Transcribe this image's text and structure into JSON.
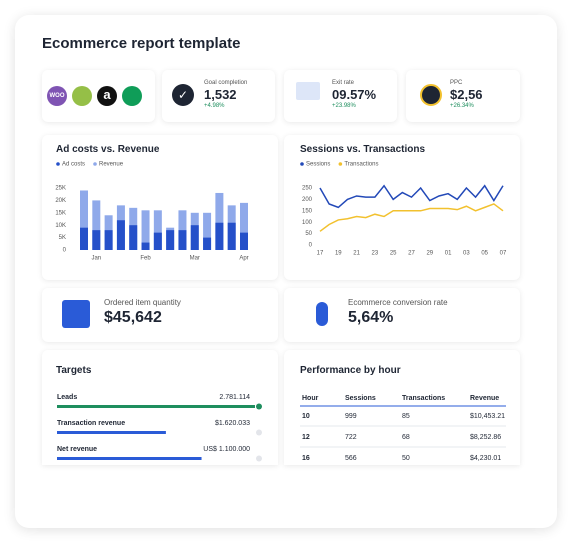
{
  "header": {
    "title": "Ecommerce report template"
  },
  "logos": [
    "WOO",
    "a"
  ],
  "kpis": [
    {
      "label": "Goal completion",
      "value": "1,532",
      "change": "+4.98%"
    },
    {
      "label": "Exit rate",
      "value": "09.57%",
      "change": "+23.98%"
    },
    {
      "label": "PPC",
      "value": "$2,56",
      "change": "+26.34%"
    }
  ],
  "charts": [
    {
      "type": "bar",
      "title": "Ad costs vs. Revenue",
      "categories": [
        null,
        "Jan",
        null,
        null,
        null,
        "Feb",
        null,
        null,
        null,
        "Mar",
        null,
        null,
        null,
        "Apr"
      ],
      "series": [
        {
          "name": "Ad costs",
          "color": "#2550c9",
          "values": [
            9000,
            8000,
            8000,
            12000,
            10000,
            3000,
            7000,
            8000,
            8000,
            10000,
            5000,
            11000,
            11000,
            7000
          ]
        },
        {
          "name": "Revenue",
          "color": "#8fa9ea",
          "values": [
            24000,
            20000,
            14000,
            18000,
            17000,
            16000,
            16000,
            9000,
            16000,
            15000,
            15000,
            23000,
            18000,
            19000
          ]
        }
      ],
      "ylim": [
        0,
        25000
      ],
      "yticks": [
        0,
        {
          "value": 5000,
          "label": "5K"
        },
        {
          "value": 10000,
          "label": "10K"
        },
        {
          "value": 15000,
          "label": "15K"
        },
        {
          "value": 20000,
          "label": "20K"
        },
        {
          "value": 25000,
          "label": "25K"
        }
      ]
    },
    {
      "type": "line",
      "title": "Sessions vs. Transactions",
      "categories": [
        "17",
        null,
        "19",
        null,
        "21",
        null,
        "23",
        null,
        "25",
        null,
        "27",
        null,
        "29",
        null,
        "01",
        null,
        "03",
        null,
        "05",
        null,
        "07"
      ],
      "series": [
        {
          "name": "Sessions",
          "color": "#2349b8",
          "values": [
            250,
            180,
            165,
            200,
            215,
            210,
            210,
            260,
            200,
            230,
            210,
            250,
            195,
            215,
            225,
            200,
            250,
            210,
            260,
            195,
            260
          ]
        },
        {
          "name": "Transactions",
          "color": "#f2c12e",
          "values": [
            60,
            90,
            110,
            115,
            125,
            120,
            135,
            125,
            150,
            150,
            150,
            150,
            160,
            160,
            160,
            155,
            170,
            150,
            165,
            180,
            150
          ]
        }
      ],
      "ylim": [
        0,
        250
      ],
      "yticks": [
        0,
        50,
        100,
        150,
        200,
        250
      ]
    }
  ],
  "big": [
    {
      "label": "Ordered item quantity",
      "value": "$45,642"
    },
    {
      "label": "Ecommerce conversion rate",
      "value": "5,64%"
    }
  ],
  "targets": {
    "title": "Targets",
    "items": [
      {
        "label": "Leads",
        "value": "2.781.114",
        "progress": 100,
        "color": "#1e8e5e"
      },
      {
        "label": "Transaction revenue",
        "value": "$1.620.033",
        "progress": 55,
        "color": "#2a5bd7"
      },
      {
        "label": "Net revenue",
        "value": "US$ 1.100.000",
        "progress": 73,
        "color": "#2a5bd7"
      }
    ]
  },
  "table": {
    "title": "Performance by hour",
    "header": [
      "Hour",
      "Sessions",
      "Transactions",
      "Revenue"
    ],
    "rows": [
      [
        "10",
        "999",
        "85",
        "$10,453.21"
      ],
      [
        "12",
        "722",
        "68",
        "$8,252.86"
      ],
      [
        "16",
        "566",
        "50",
        "$4,230.01"
      ]
    ]
  }
}
